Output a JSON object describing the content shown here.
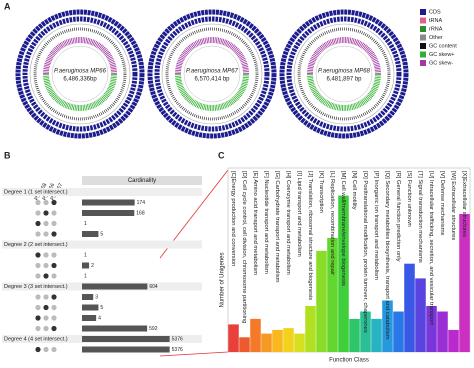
{
  "panel_a": {
    "label": "A",
    "genomes": [
      {
        "name": "P.aeruginosa MP66",
        "length": "6,486,336bp"
      },
      {
        "name": "P.aeruginosa MP67",
        "length": "6,570,414 bp"
      },
      {
        "name": "P.aeruginosa MP68",
        "length": "6,481,897 bp"
      }
    ],
    "legend": [
      {
        "name": "CDS",
        "color": "#1c1c8f"
      },
      {
        "name": "tRNA",
        "color": "#e0608c"
      },
      {
        "name": "rRNA",
        "color": "#2e8b2e"
      },
      {
        "name": "Other",
        "color": "#8a8a8a"
      },
      {
        "name": "GC content",
        "color": "#111111"
      },
      {
        "name": "GC skew+",
        "color": "#33b033"
      },
      {
        "name": "GC skew-",
        "color": "#a03aa0"
      }
    ]
  },
  "panel_b": {
    "label": "B",
    "sets": [
      "P.MP68",
      "P.MP66",
      "P.MP67"
    ],
    "column_title": "Cardinality"
  },
  "panel_c": {
    "label": "C"
  },
  "chart_data": [
    {
      "type": "upset",
      "categories": [
        "Degree 1 (1 set intersect.)",
        null,
        null,
        null,
        null,
        "Degree 2 (2 set intersect.)",
        null,
        null,
        null,
        "Degree 3 (3 set intersect.)",
        null,
        null,
        null,
        null,
        "Degree 4 (4 set intersect.)",
        null
      ],
      "values": [
        null,
        174,
        168,
        1,
        5,
        null,
        1,
        2,
        1,
        604,
        3,
        5,
        4,
        592,
        5376,
        5376
      ],
      "xscale": "log",
      "xlim": [
        1,
        10000
      ],
      "color": "#555555"
    },
    {
      "type": "bar",
      "xlabel": "Function Class",
      "ylabel": "Number of Unigenes",
      "categories": [
        "[C]Energy production and conversion",
        "[D] Cell cycle control, cell division, chromosome partitioning",
        "[E] Amino acid transport and metabolism",
        "[F] Nucleotide transport and metabolism",
        "[G] Carbohydrate transport and metabolism",
        "[H] Coenzyme transport and metabolism",
        "[I] Lipid transport and metabolism",
        "[J] Translation, ribosomal structure and biogenesis",
        "[K] Transcription",
        "[L] Replication, recombination and repair",
        "[M] Cell wall/membrane/envelope biogenesis",
        "[N] Cell motility",
        "[O] Posttranslational modification, protein turnover, chaperones",
        "[P] Inorganic ion transport and metabolism",
        "[Q] Secondary metabolites biosynthesis, transport and catabolism",
        "[R] General function prediction only",
        "[S] Function unknown",
        "[T] Signal transduction mechanisms",
        "[U] Intracellular trafficking, secretion, and vesicular transport",
        "[V] Defense mechanisms",
        "[W] Extracellular structures",
        "[X]Extracellular structures"
      ],
      "values": [
        15,
        8,
        18,
        10,
        12,
        13,
        10,
        25,
        55,
        62,
        85,
        18,
        22,
        18,
        28,
        22,
        48,
        40,
        25,
        22,
        12,
        75
      ],
      "colors": [
        "#e8403a",
        "#ee5a30",
        "#f47a2a",
        "#f79a24",
        "#f9b820",
        "#f3d21e",
        "#d6e01f",
        "#b1e022",
        "#8bdc28",
        "#63d72e",
        "#3fcf3a",
        "#2fc66a",
        "#2bbf98",
        "#27b3c4",
        "#2598e0",
        "#2a78e8",
        "#3a58e6",
        "#5a44e0",
        "#7a36da",
        "#9a2fd4",
        "#b82acb",
        "#cc30c0"
      ],
      "ylim": [
        0,
        100
      ]
    }
  ]
}
